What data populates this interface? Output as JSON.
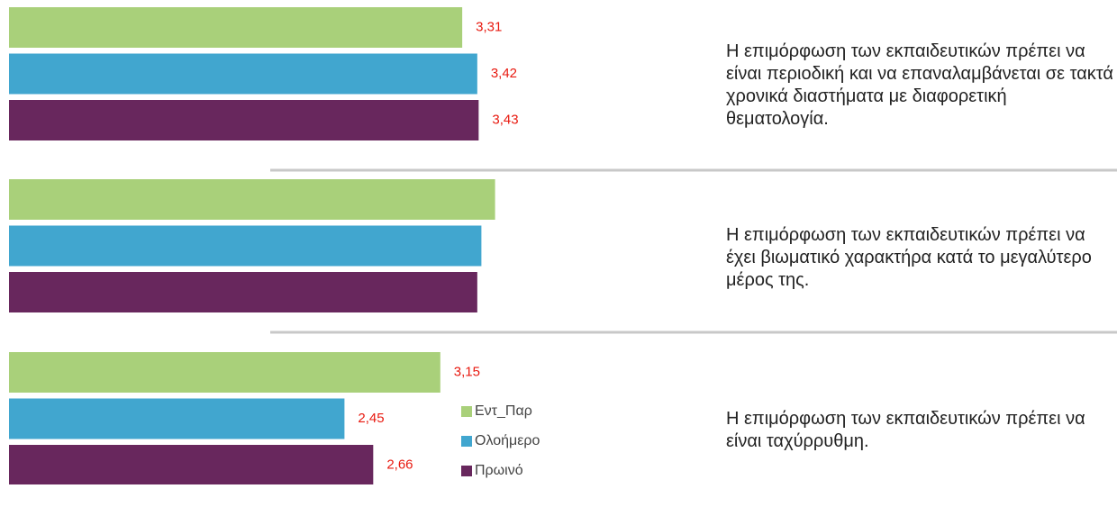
{
  "chart_data": {
    "type": "bar",
    "orientation": "horizontal",
    "categories": [
      "Η επιμόρφωση των εκπαιδευτικών πρέπει να είναι περιοδική και να επαναλαμβάνεται σε τακτά χρονικά διαστήματα με διαφορετική θεματολογία.",
      "Η επιμόρφωση των εκπαιδευτικών πρέπει να έχει βιωματικό χαρακτήρα κατά το μεγαλύτερο μέρος της.",
      "Η επιμόρφωση των εκπαιδευτικών πρέπει να είναι ταχύρρυθμη."
    ],
    "series": [
      {
        "name": "Εντ_Παρ",
        "color": "#a9d07a",
        "values": [
          3.31,
          3.55,
          3.15
        ],
        "value_labels": [
          "3,31",
          null,
          "3,15"
        ]
      },
      {
        "name": "Ολοήμερο",
        "color": "#41a6cf",
        "values": [
          3.42,
          3.45,
          2.45
        ],
        "value_labels": [
          "3,42",
          null,
          "2,45"
        ]
      },
      {
        "name": "Πρωινό",
        "color": "#68275d",
        "values": [
          3.43,
          3.42,
          2.66
        ],
        "value_labels": [
          "3,43",
          null,
          "2,66"
        ]
      }
    ],
    "xlim": [
      0,
      4
    ]
  }
}
